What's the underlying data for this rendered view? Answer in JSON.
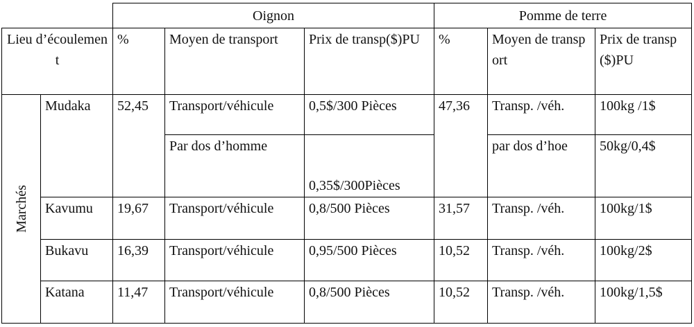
{
  "table": {
    "crops": [
      "Oignon",
      "Pomme de terre"
    ],
    "location_header": "Lieu d’écoulement",
    "columns": [
      "%",
      "Moyen de transport",
      "Prix de transp($)PU",
      "%",
      "Moyen de transport",
      "Prix de transp($)PU"
    ],
    "group_label": "Marchés",
    "rows": [
      {
        "place": "Mudaka",
        "oignon_pct": "52,45",
        "oignon": [
          [
            "Transport/véhicule",
            "0,5$/300 Pièces"
          ],
          [
            "Par dos d’homme",
            "0,35$/300Pièces"
          ]
        ],
        "pdt_pct": "47,36",
        "pdt": [
          [
            "Transp. /véh.",
            "100kg /1$"
          ],
          [
            "par dos d’hoe",
            "50kg/0,4$"
          ]
        ]
      },
      {
        "place": "Kavumu",
        "oignon_pct": "19,67",
        "oignon": [
          [
            "Transport/véhicule",
            "0,8/500 Pièces"
          ]
        ],
        "pdt_pct": "31,57",
        "pdt": [
          [
            "Transp. /véh.",
            "100kg/1$"
          ]
        ]
      },
      {
        "place": "Bukavu",
        "oignon_pct": "16,39",
        "oignon": [
          [
            "Transport/véhicule",
            "0,95/500 Pièces"
          ]
        ],
        "pdt_pct": "10,52",
        "pdt": [
          [
            "Transp. /véh.",
            "100kg/2$"
          ]
        ]
      },
      {
        "place": "Katana",
        "oignon_pct": "11,47",
        "oignon": [
          [
            "Transport/véhicule",
            "0,8/500 Pièces"
          ]
        ],
        "pdt_pct": "10,52",
        "pdt": [
          [
            "Transp. /véh.",
            "100kg/1,5$"
          ]
        ]
      }
    ]
  }
}
